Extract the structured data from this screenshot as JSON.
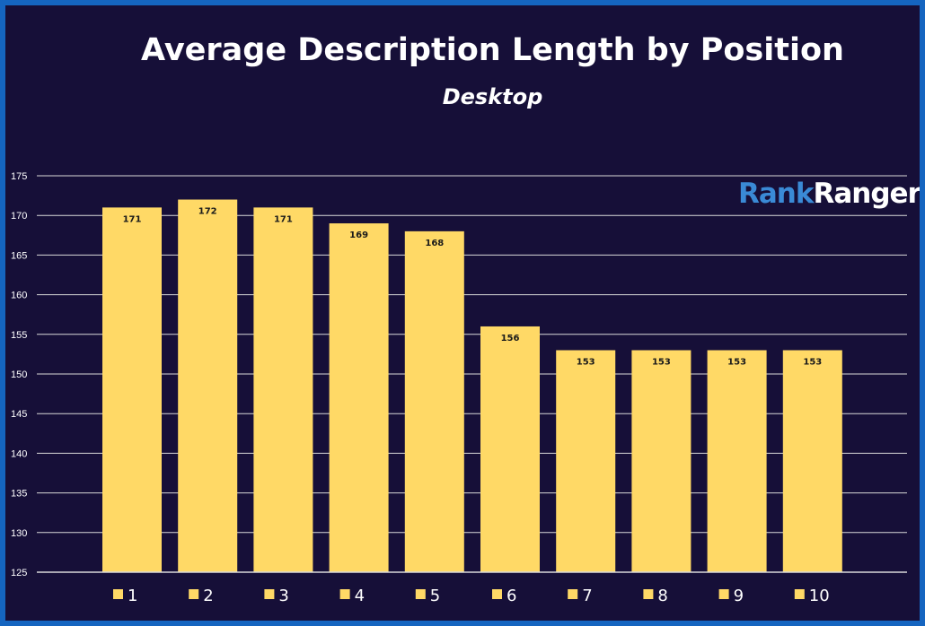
{
  "chart_data": {
    "type": "bar",
    "title": "Average Description Length by Position",
    "subtitle": "Desktop",
    "categories": [
      "1",
      "2",
      "3",
      "4",
      "5",
      "6",
      "7",
      "8",
      "9",
      "10"
    ],
    "series": [
      {
        "name": "1",
        "value": 171
      },
      {
        "name": "2",
        "value": 172
      },
      {
        "name": "3",
        "value": 171
      },
      {
        "name": "4",
        "value": 169
      },
      {
        "name": "5",
        "value": 168
      },
      {
        "name": "6",
        "value": 156
      },
      {
        "name": "7",
        "value": 153
      },
      {
        "name": "8",
        "value": 153
      },
      {
        "name": "9",
        "value": 153
      },
      {
        "name": "10",
        "value": 153
      }
    ],
    "ylim": [
      125,
      175
    ],
    "yticks": [
      125,
      130,
      135,
      140,
      145,
      150,
      155,
      160,
      165,
      170,
      175
    ],
    "grid": true,
    "legend": "bottom",
    "bar_color": "#ffd966",
    "background": "#160f38",
    "border_color": "#1565c0"
  },
  "logo": {
    "part1": "Rank",
    "part2": "Ranger"
  }
}
